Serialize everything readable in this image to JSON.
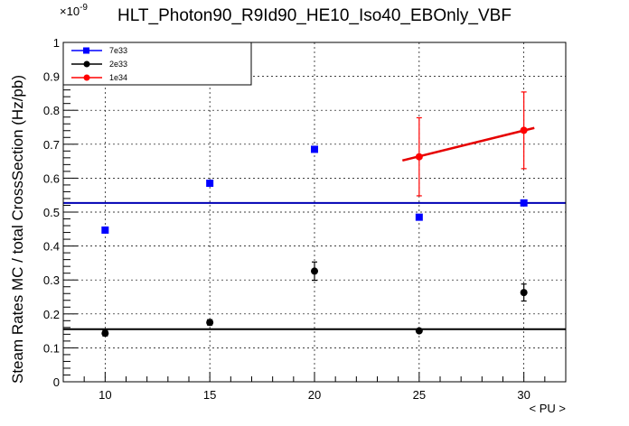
{
  "chart_data": {
    "type": "scatter",
    "title": "HLT_Photon90_R9Id90_HE10_Iso40_EBOnly_VBF",
    "xlabel": "< PU >",
    "ylabel": "Steam Rates MC / total CrossSection (Hz/pb)",
    "y_exponent_label": "×10",
    "y_exponent_power": "-9",
    "xlim": [
      8,
      32
    ],
    "ylim": [
      0,
      1
    ],
    "x_ticks": [
      "10",
      "15",
      "20",
      "25",
      "30"
    ],
    "y_ticks": [
      "0",
      "0.1",
      "0.2",
      "0.3",
      "0.4",
      "0.5",
      "0.6",
      "0.7",
      "0.8",
      "0.9",
      "1"
    ],
    "grid": true,
    "legend_position": "top-left",
    "series": [
      {
        "name": "7e33",
        "color": "#0000ff",
        "marker": "square",
        "x": [
          10,
          15,
          20,
          25,
          30
        ],
        "y": [
          0.447,
          0.585,
          0.685,
          0.485,
          0.527
        ],
        "yerr": [
          0.005,
          0.005,
          0.005,
          0.005,
          0.005
        ],
        "fit": {
          "type": "constant",
          "value": 0.527,
          "x_range": [
            8,
            32
          ],
          "color": "#0000b4"
        }
      },
      {
        "name": "2e33",
        "color": "#000000",
        "marker": "circle",
        "x": [
          10,
          15,
          20,
          25,
          30
        ],
        "y": [
          0.143,
          0.175,
          0.326,
          0.15,
          0.263
        ],
        "yerr": [
          0.008,
          0.008,
          0.027,
          0.006,
          0.025
        ],
        "fit": {
          "type": "constant",
          "value": 0.155,
          "x_range": [
            8,
            32
          ],
          "color": "#000000"
        }
      },
      {
        "name": "1e34",
        "color": "#ff0000",
        "marker": "circle",
        "x": [
          25,
          30
        ],
        "y": [
          0.663,
          0.741
        ],
        "yerr": [
          0.115,
          0.113
        ],
        "fit": {
          "type": "linear",
          "points": [
            [
              24.2,
              0.652
            ],
            [
              30.5,
              0.748
            ]
          ],
          "color": "#e60000"
        }
      }
    ]
  }
}
